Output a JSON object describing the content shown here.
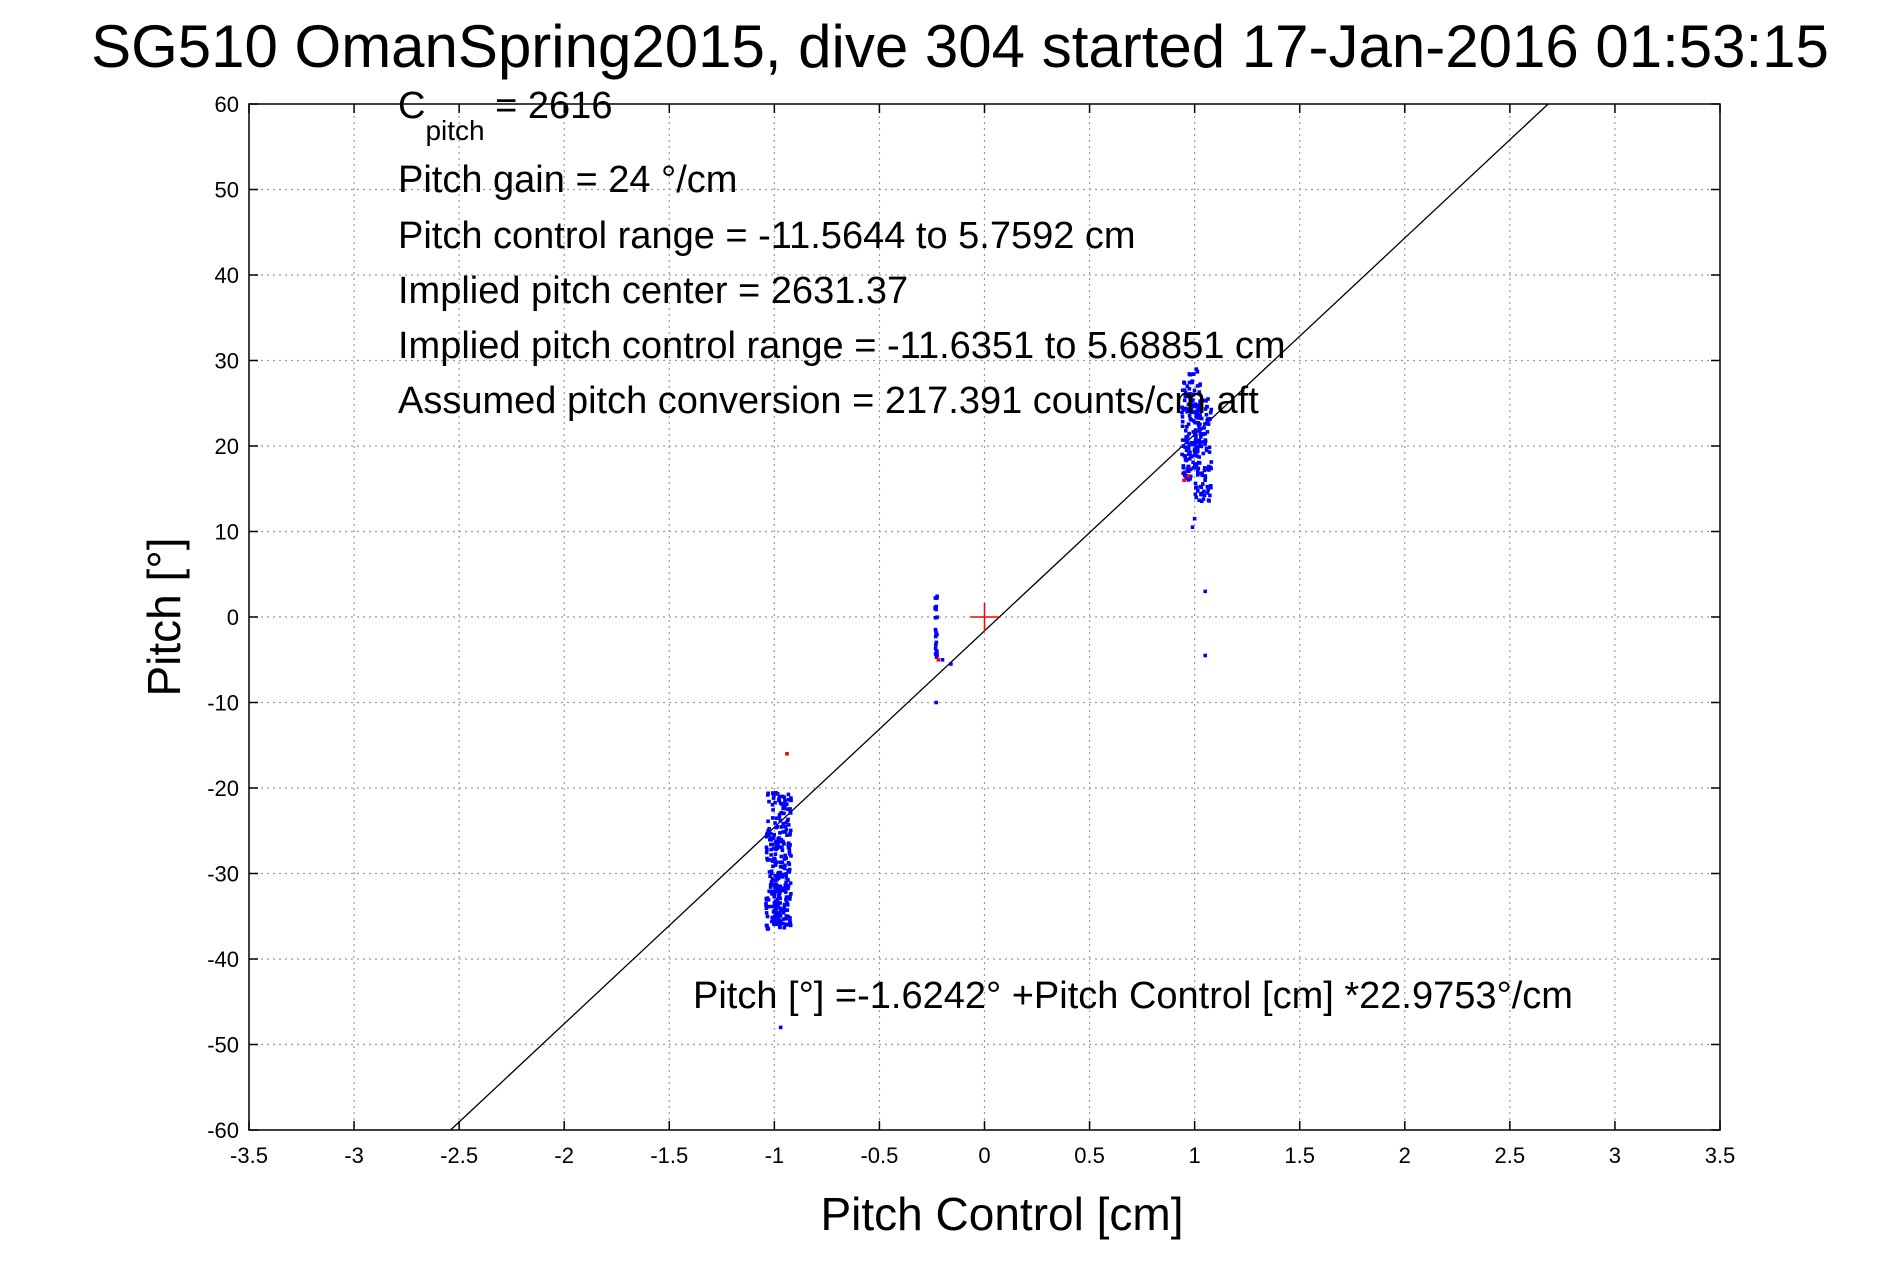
{
  "chart_data": {
    "type": "scatter",
    "title": "SG510 OmanSpring2015, dive 304 started 17-Jan-2016 01:53:15",
    "xlabel": "Pitch Control [cm]",
    "ylabel": "Pitch [°]",
    "xlim": [
      -3.5,
      3.5
    ],
    "ylim": [
      -60,
      60
    ],
    "xticks": [
      "-3.5",
      "-3",
      "-2.5",
      "-2",
      "-1.5",
      "-1",
      "-0.5",
      "0",
      "0.5",
      "1",
      "1.5",
      "2",
      "2.5",
      "3",
      "3.5"
    ],
    "yticks": [
      "60",
      "50",
      "40",
      "30",
      "20",
      "10",
      "0",
      "-10",
      "-20",
      "-30",
      "-40",
      "-50",
      "-60"
    ],
    "grid": true,
    "annotations": {
      "cpitch_main": "C",
      "cpitch_sub": "pitch",
      "cpitch_value": " = 2616",
      "pitch_gain": "Pitch gain = 24 °/cm",
      "pitch_control_range": "Pitch control range = -11.5644 to 5.7592 cm",
      "implied_center": "Implied pitch center = 2631.37",
      "implied_range": "Implied pitch control range = -11.6351 to 5.68851 cm",
      "conversion": "Assumed pitch conversion = 217.391 counts/cm aft",
      "fit_equation": "Pitch [°] =-1.6242° +Pitch Control [cm] *22.9753°/cm"
    },
    "fit": {
      "intercept": -1.6242,
      "slope": 22.9753,
      "color": "#000000"
    },
    "center_marker": {
      "x": 0,
      "y": 0,
      "color": "#ff0000"
    },
    "series": [
      {
        "color": "#0000ff",
        "clusters": [
          {
            "x": [
              -1.04,
              -0.92
            ],
            "y": [
              -36.5,
              -20.5
            ],
            "n": 260,
            "seed": 11
          },
          {
            "x": [
              -1.0,
              -0.97
            ],
            "y": [
              -36.5,
              -31
            ],
            "n": 40,
            "seed": 12
          },
          {
            "x": [
              0.94,
              1.03
            ],
            "y": [
              16,
              29
            ],
            "n": 140,
            "seed": 21
          },
          {
            "x": [
              1.0,
              1.08
            ],
            "y": [
              13.5,
              25.5
            ],
            "n": 110,
            "seed": 22
          },
          {
            "x": [
              -0.235,
              -0.225
            ],
            "y": [
              -5,
              2.5
            ],
            "n": 24,
            "seed": 31
          }
        ],
        "points": [
          {
            "x": -0.97,
            "y": -48
          },
          {
            "x": -0.23,
            "y": -10
          },
          {
            "x": -0.16,
            "y": -5.5
          },
          {
            "x": -0.2,
            "y": -5
          },
          {
            "x": 1.05,
            "y": 3
          },
          {
            "x": 1.05,
            "y": -4.5
          },
          {
            "x": 0.99,
            "y": 10.5
          },
          {
            "x": 1.0,
            "y": 11.5
          }
        ]
      },
      {
        "color": "#ff0000",
        "points": [
          {
            "x": -0.94,
            "y": -16
          },
          {
            "x": -0.22,
            "y": -5
          },
          {
            "x": 0.95,
            "y": 16
          },
          {
            "x": 0.97,
            "y": 16.5
          }
        ]
      }
    ]
  }
}
